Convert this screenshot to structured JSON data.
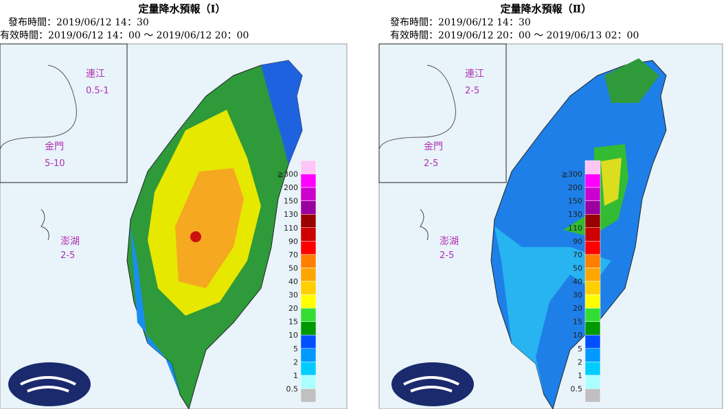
{
  "panels": [
    {
      "title": "定量降水預報（Ⅰ）",
      "issue": "發布時間：2019/06/12 14：30",
      "valid": "有效時間：2019/06/12 14：00 ～ 2019/06/12 20：00",
      "insets": [
        {
          "name": "連江",
          "value": "0.5-1"
        },
        {
          "name": "金門",
          "value": "5-10"
        },
        {
          "name": "澎湖",
          "value": "2-5"
        }
      ]
    },
    {
      "title": "定量降水預報（Ⅱ）",
      "issue": "發布時間：2019/06/12 14：30",
      "valid": "有效時間：2019/06/12 20：00 ～ 2019/06/13 02：00",
      "insets": [
        {
          "name": "連江",
          "value": "2-5"
        },
        {
          "name": "金門",
          "value": "2-5"
        },
        {
          "name": "澎湖",
          "value": "2-5"
        }
      ]
    }
  ],
  "legend": {
    "labels": [
      "≧300",
      "200",
      "150",
      "130",
      "110",
      "90",
      "70",
      "50",
      "40",
      "30",
      "20",
      "15",
      "10",
      "5",
      "2",
      "1",
      "0.5"
    ],
    "colors": [
      "#ffc6f5",
      "#ff00ff",
      "#cc00cc",
      "#99009f",
      "#990000",
      "#cc0000",
      "#ff0000",
      "#ff7f00",
      "#ffa500",
      "#ffd000",
      "#ffff00",
      "#33dd33",
      "#009900",
      "#0050ff",
      "#0099ff",
      "#00ccff",
      "#aaffff",
      "#c0c0c0"
    ]
  }
}
